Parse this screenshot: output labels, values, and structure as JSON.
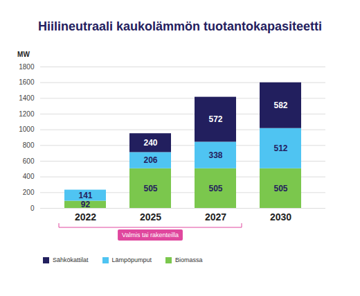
{
  "chart_data": {
    "type": "bar",
    "title": "Hiilineutraali kaukolämmön tuotantokapasiteetti",
    "y_label": "MW",
    "categories": [
      "2022",
      "2025",
      "2027",
      "2030"
    ],
    "series": [
      {
        "name": "Sähkökattilat",
        "color": "#221f5e",
        "values": [
          null,
          240,
          572,
          582
        ]
      },
      {
        "name": "Lämpöpumput",
        "color": "#4fc4f2",
        "values": [
          141,
          206,
          338,
          512
        ]
      },
      {
        "name": "Biomassa",
        "color": "#7bc74d",
        "values": [
          92,
          505,
          505,
          505
        ]
      }
    ],
    "stacked": true,
    "data_labels": true,
    "grid": true,
    "legend": "bottom-left",
    "ylim": [
      0,
      1800
    ],
    "yticks": [
      0,
      200,
      400,
      600,
      800,
      1000,
      1200,
      1400,
      1600,
      1800
    ],
    "annotations": [
      {
        "text": "Valmis tai rakenteilla",
        "from": "2022",
        "to": "2027"
      }
    ]
  }
}
